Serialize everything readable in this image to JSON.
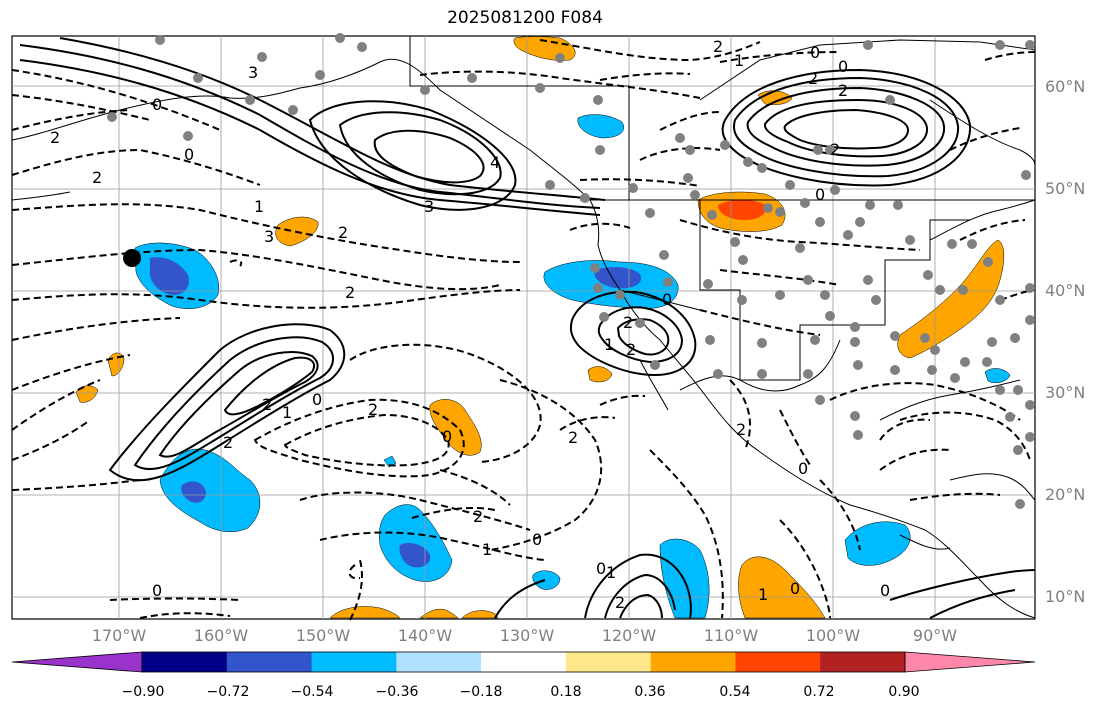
{
  "title": "2025081200 F084",
  "latitude_labels": [
    "60°N",
    "50°N",
    "40°N",
    "30°N",
    "20°N",
    "10°N"
  ],
  "longitude_labels": [
    "170°W",
    "160°W",
    "150°W",
    "140°W",
    "130°W",
    "120°W",
    "110°W",
    "100°W",
    "90°W"
  ],
  "colorbar": {
    "tick_labels": [
      "−0.90",
      "−0.72",
      "−0.54",
      "−0.36",
      "−0.18",
      "0.18",
      "0.36",
      "0.54",
      "0.72",
      "0.90"
    ],
    "colors": [
      "#9933cc",
      "#000088",
      "#3355cc",
      "#00bbff",
      "#b0e2ff",
      "#ffffff",
      "#ffe88a",
      "#ffa500",
      "#ff4500",
      "#b22222",
      "#ff88aa"
    ]
  },
  "contour_labels": [
    "3",
    "0",
    "2",
    "2",
    "0",
    "2",
    "1",
    "3",
    "2",
    "2",
    "1",
    "0",
    "2",
    "3",
    "4",
    "2",
    "0",
    "0",
    "1",
    "2",
    "2",
    "2",
    "2",
    "1",
    "2",
    "0",
    "2",
    "0",
    "0",
    "2",
    "1",
    "2",
    "0",
    "0",
    "2",
    "0",
    "1",
    "0",
    "2",
    "1",
    "0",
    "0"
  ],
  "colors": {
    "orange": "#ffa500",
    "red": "#ff4500",
    "light_blue": "#00bbff",
    "dark_blue": "#3355cc",
    "gridline": "#999999",
    "station": "#808080"
  }
}
